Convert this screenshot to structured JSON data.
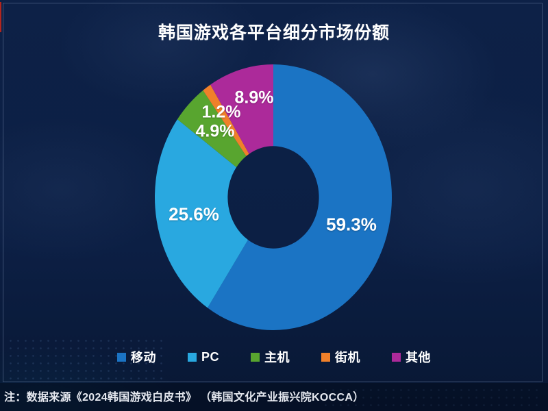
{
  "header": {
    "title": "韩国游戏各平台细分市场份额"
  },
  "chart_data": {
    "type": "pie",
    "subtype": "donut",
    "title": "韩国游戏各平台细分市场份额",
    "unit": "%",
    "categories": [
      "移动",
      "PC",
      "主机",
      "街机",
      "其他"
    ],
    "values": [
      59.3,
      25.6,
      4.9,
      1.2,
      8.9
    ],
    "value_labels": [
      "59.3%",
      "25.6%",
      "4.9%",
      "1.2%",
      "8.9%"
    ],
    "colors": [
      "#1b74c4",
      "#29a8e0",
      "#58a52f",
      "#f0802a",
      "#ac2a9a"
    ],
    "start_angle_deg": 0,
    "direction": "clockwise",
    "inner_radius_ratio": 0.385,
    "legend_position": "bottom",
    "background_color": "#0c1f44",
    "label_color": "#ffffff"
  },
  "footer": {
    "note": "注：数据来源《2024韩国游戏白皮书》 （韩国文化产业振兴院KOCCA）"
  }
}
